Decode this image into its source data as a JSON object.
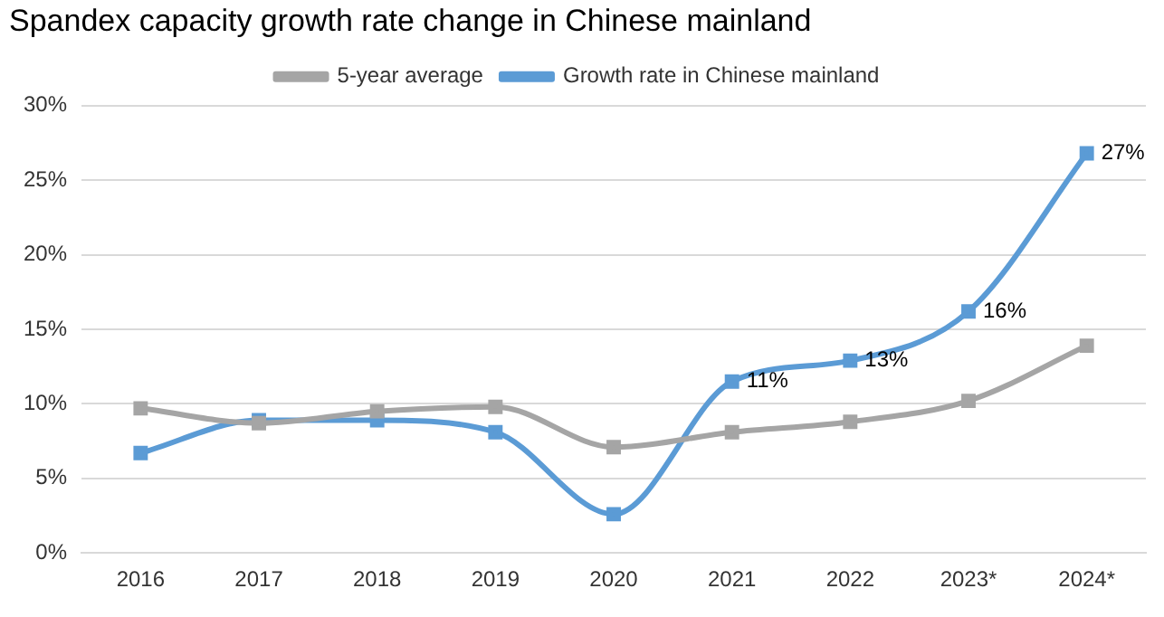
{
  "chart_data": {
    "type": "line",
    "title": "Spandex capacity growth rate change in Chinese mainland",
    "categories": [
      "2016",
      "2017",
      "2018",
      "2019",
      "2020",
      "2021",
      "2022",
      "2023*",
      "2024*"
    ],
    "series": [
      {
        "name": "Growth rate in Chinese mainland",
        "color": "#5b9bd5",
        "values": [
          6.7,
          8.9,
          8.9,
          8.1,
          2.6,
          11.5,
          12.9,
          16.2,
          26.8
        ],
        "value_labels": [
          null,
          null,
          null,
          null,
          null,
          "11%",
          "13%",
          "16%",
          "27%"
        ]
      },
      {
        "name": "5-year average",
        "color": "#a5a5a5",
        "values": [
          9.7,
          8.7,
          9.5,
          9.8,
          7.1,
          8.1,
          8.8,
          10.2,
          13.9
        ]
      }
    ],
    "ylim": [
      0,
      30
    ],
    "yticks": [
      {
        "value": 0,
        "label": "0%"
      },
      {
        "value": 5,
        "label": "5%"
      },
      {
        "value": 10,
        "label": "10%"
      },
      {
        "value": 15,
        "label": "15%"
      },
      {
        "value": 20,
        "label": "20%"
      },
      {
        "value": 25,
        "label": "25%"
      },
      {
        "value": 30,
        "label": "30%"
      }
    ],
    "grid": "y",
    "legend": "top",
    "marker": "square"
  }
}
